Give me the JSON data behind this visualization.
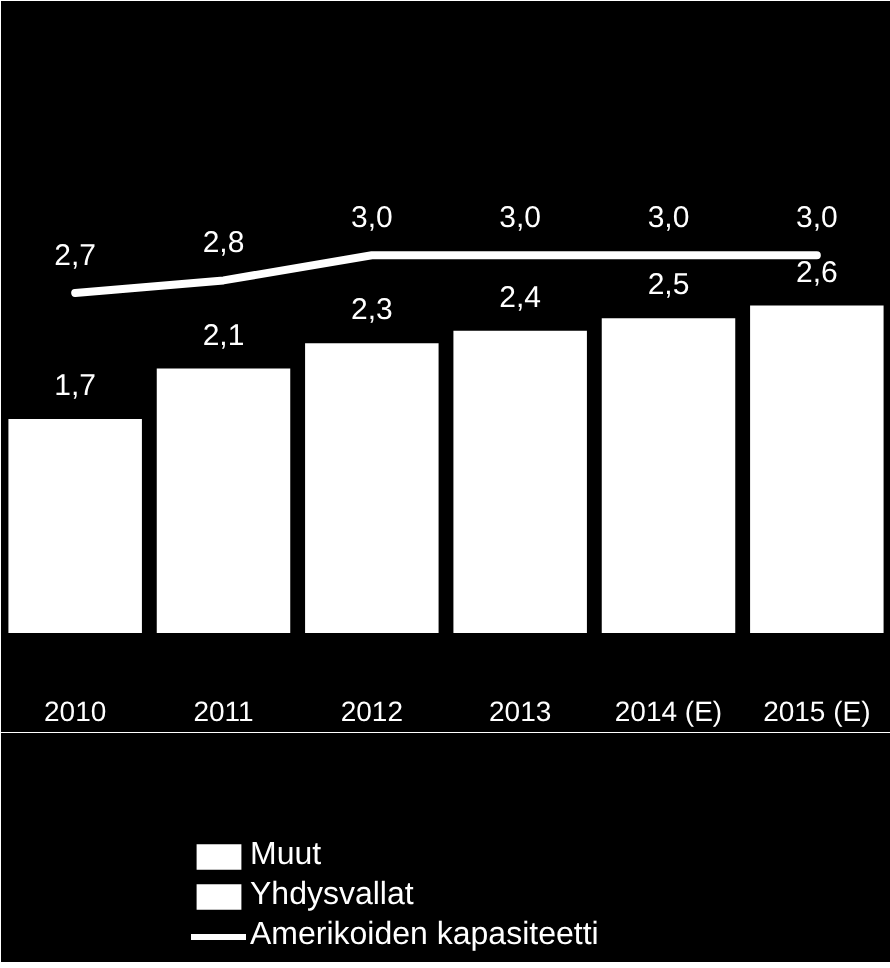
{
  "chart_data": {
    "type": "bar",
    "categories": [
      "2010",
      "2011",
      "2012",
      "2013",
      "2014 (E)",
      "2015 (E)"
    ],
    "series": [
      {
        "name": "Muut",
        "color": "#ffffff",
        "values": [
          1.7,
          2.1,
          2.3,
          2.4,
          2.5,
          2.6
        ],
        "value_labels": [
          "1,7",
          "2,1",
          "2,3",
          "2,4",
          "2,5",
          "2,6"
        ]
      },
      {
        "name": "Yhdysvallat",
        "color": "#ffffff",
        "values": [
          null,
          null,
          null,
          null,
          null,
          null
        ]
      },
      {
        "name": "Amerikoiden kapasiteetti",
        "type": "line",
        "color": "#ffffff",
        "values": [
          2.7,
          2.8,
          3.0,
          3.0,
          3.0,
          3.0
        ],
        "value_labels": [
          "2,7",
          "2,8",
          "3,0",
          "3,0",
          "3,0",
          "3,0"
        ]
      }
    ],
    "tick_labels": "x",
    "legend": "bottom"
  }
}
